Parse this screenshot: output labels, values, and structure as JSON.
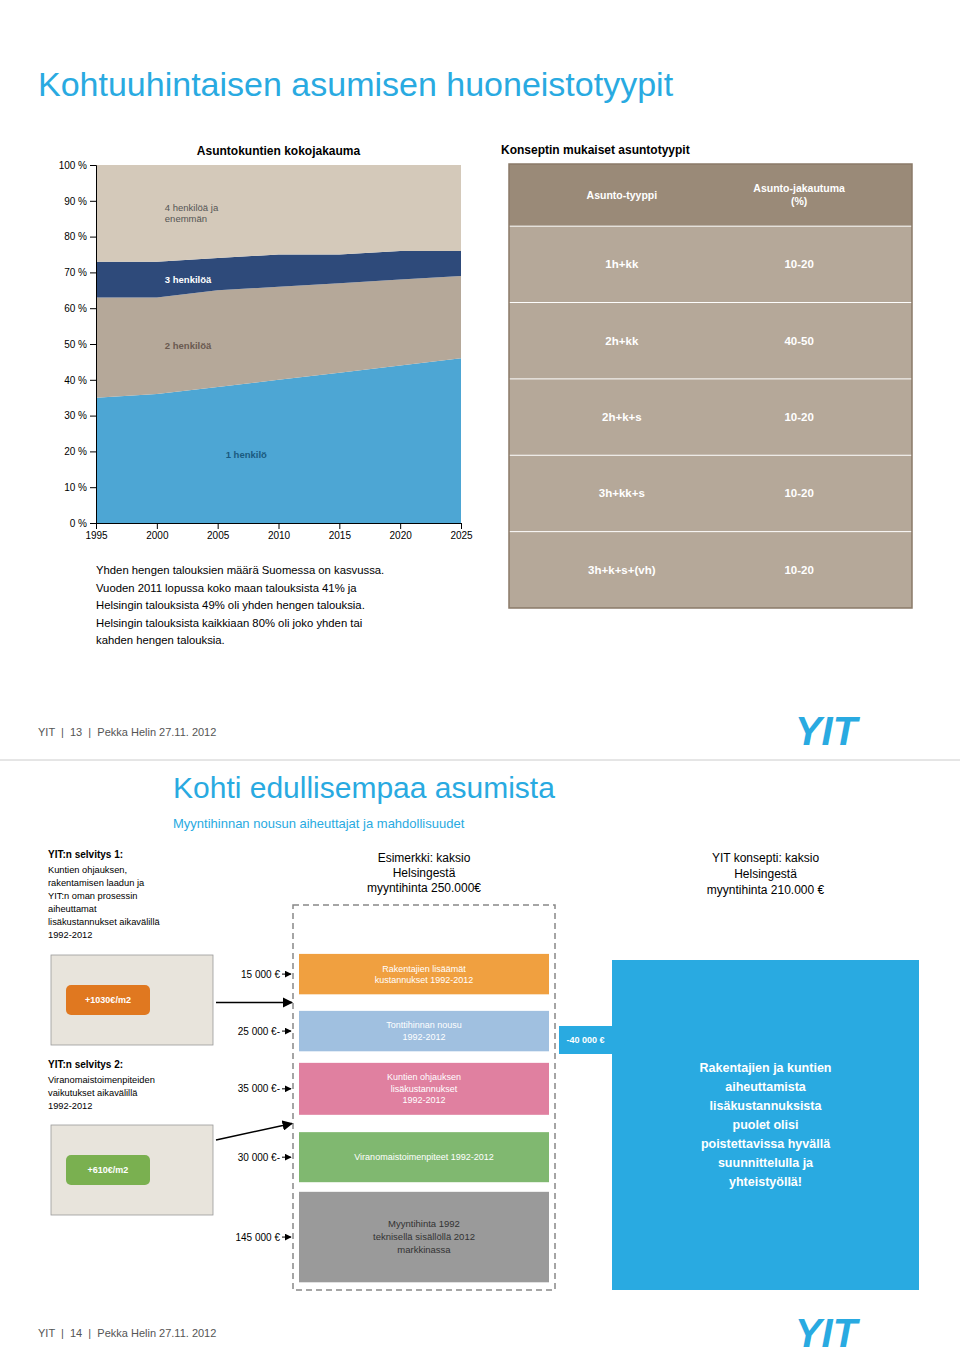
{
  "chart_data": {
    "type": "area",
    "stacked": true,
    "title": "Asuntokuntien kokojakauma",
    "x": [
      1995,
      2000,
      2005,
      2010,
      2015,
      2020,
      2025
    ],
    "xlim": [
      1995,
      2025
    ],
    "xticks": [
      1995,
      2000,
      2005,
      2010,
      2015,
      2020,
      2025
    ],
    "ylim": [
      0,
      100
    ],
    "yticks": [
      {
        "value": 0,
        "label": "0 %"
      },
      {
        "value": 10,
        "label": "10 %"
      },
      {
        "value": 20,
        "label": "20 %"
      },
      {
        "value": 30,
        "label": "30 %"
      },
      {
        "value": 40,
        "label": "40 %"
      },
      {
        "value": 50,
        "label": "50 %"
      },
      {
        "value": 60,
        "label": "60 %"
      },
      {
        "value": 70,
        "label": "70 %"
      },
      {
        "value": 80,
        "label": "80 %"
      },
      {
        "value": 90,
        "label": "90 %"
      },
      {
        "value": 100,
        "label": "100 %"
      }
    ],
    "series": [
      {
        "name": "1 henkilö",
        "color": "#4da6d4",
        "values": [
          35,
          36,
          38,
          40,
          42,
          44,
          46
        ]
      },
      {
        "name": "2 henkilöä",
        "color": "#b5a899",
        "values": [
          28,
          27,
          27,
          26,
          25,
          24,
          23
        ]
      },
      {
        "name": "3 henkilöä",
        "color": "#2e4a7a",
        "values": [
          10,
          10,
          9,
          9,
          8,
          8,
          7
        ]
      },
      {
        "name": "4 henkilöä ja\nenemmän",
        "color": "#d4c9ba",
        "values": [
          27,
          27,
          26,
          25,
          25,
          24,
          24
        ]
      }
    ]
  },
  "page1": {
    "title": "Kohtuuhintaisen asumisen huoneistotyypit",
    "color": "#29aae1",
    "table": {
      "title": "Konseptin mukaiset asuntotyypit",
      "color": "#b5a899",
      "header_color": "#9a8a78",
      "columns": [
        "Asunto-tyyppi",
        "Asunto-jakautuma\n(%)"
      ],
      "rows": [
        [
          "1h+kk",
          "10-20"
        ],
        [
          "2h+kk",
          "40-50"
        ],
        [
          "2h+k+s",
          "10-20"
        ],
        [
          "3h+kk+s",
          "10-20"
        ],
        [
          "3h+k+s+(vh)",
          "10-20"
        ]
      ]
    },
    "text": "Yhden hengen talouksien määrä Suomessa on kasvussa.\nVuoden 2011 lopussa koko maan talouksista 41% ja\nHelsingin talouksista 49% oli yhden hengen talouksia.\nHelsingin talouksista kaikkiaan 80% oli joko yhden tai\nkahden hengen talouksia.",
    "footer": "YIT  |  13  |  Pekka Helin 27.11. 2012",
    "logo": "YIT"
  },
  "page2": {
    "title": "Kohti edullisempaa asumista",
    "subtitle": "Myyntihinnan nousun aiheuttajat ja mahdollisuudet",
    "color": "#29aae1",
    "reports": [
      {
        "title": "YIT:n selvitys 1:",
        "text": "Kuntien ohjauksen,\nrakentamisen laadun ja\nYIT:n oman prosessin\naiheuttamat\nlisäkustannukset aikavälillä\n1992-2012",
        "stamp": {
          "text": "+1030€/m2",
          "color": "#e07820"
        }
      },
      {
        "title": "YIT:n selvitys 2:",
        "text": "Viranomaistoimenpiteiden\nvaikutukset aikavälillä\n1992-2012",
        "stamp": {
          "text": "+610€/m2",
          "color": "#7ab050"
        }
      }
    ],
    "example": {
      "title": "Esimerkki: kaksio\nHelsingestä\nmyyntihinta 250.000€",
      "items": [
        {
          "label": "Rakentajien lisäämät\nkustannukset 1992-2012",
          "amount": "15 000 €",
          "color": "#f0a040"
        },
        {
          "label": "Tonttihinnan nousu\n1992-2012",
          "amount": "25 000 €-",
          "color": "#a0c0e0"
        },
        {
          "label": "Kuntien ohjauksen\nlisäkustannukset\n1992-2012",
          "amount": "35 000 €-",
          "color": "#e080a0"
        },
        {
          "label": "Viranomaistoimenpiteet 1992-2012",
          "amount": "30 000 €-",
          "color": "#80b870"
        }
      ],
      "base": {
        "label": "Myyntihinta 1992\nteknisellä sisällöllä 2012\nmarkkinassa",
        "amount": "145 000 €"
      }
    },
    "badge": {
      "text": "-40 000 €",
      "color": "#29aae1"
    },
    "result": {
      "title": "YIT konsepti: kaksio\nHelsingestä\nmyyntihinta 210.000 €",
      "text": "Rakentajien ja kuntien\naiheuttamista\nlisäkustannuksista\npuolet olisi\npoistettavissa hyvällä\nsuunnittelulla ja\nyhteistyöllä!",
      "color": "#29aae1"
    },
    "footer": "YIT  |  14  |  Pekka Helin 27.11. 2012",
    "logo": "YIT"
  }
}
